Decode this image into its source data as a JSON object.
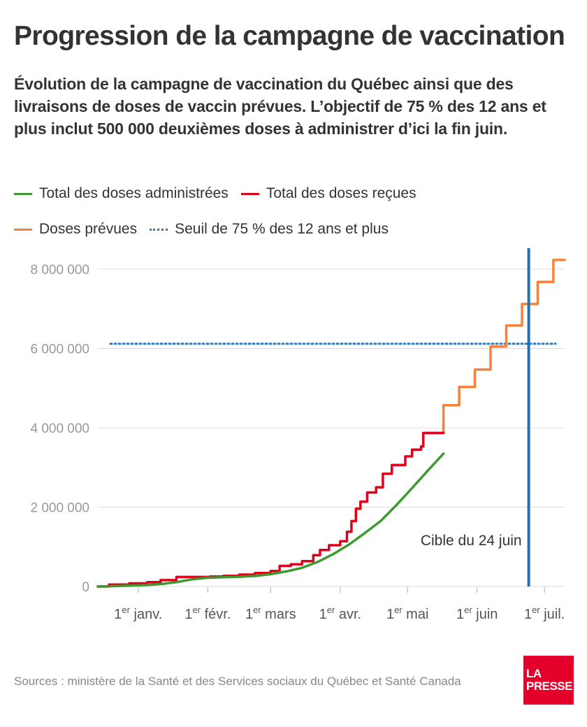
{
  "header": {
    "title": "Progression de la campagne de vaccination",
    "subtitle": "Évolution de la campagne de vaccination du Québec ainsi que des livraisons de doses de vaccin prévues. L’objectif de 75 % des 12 ans et plus inclut 500 000 deuxièmes doses à administrer d’ici la fin juin."
  },
  "legend": {
    "administered": "Total des doses administrées",
    "received": "Total des doses reçues",
    "planned": "Doses prévues",
    "threshold": "Seuil de 75 % des 12 ans et plus"
  },
  "colors": {
    "administered": "#3d9a2f",
    "received": "#e0001b",
    "planned": "#f5823c",
    "threshold": "#2b7bbd",
    "target": "#1f72b8",
    "grid": "#dddddd",
    "axis_text": "#999999"
  },
  "footer": {
    "source": "Sources : ministère de la Santé et des Services sociaux du Québec et Santé Canada",
    "logo_line1": "LA",
    "logo_line2": "PRESSE"
  },
  "chart_data": {
    "type": "line",
    "x_unit": "date",
    "xlim": [
      "2020-12-14",
      "2021-07-10"
    ],
    "ylim": [
      0,
      8000000
    ],
    "y_ticks": [
      {
        "value": 0,
        "label": "0"
      },
      {
        "value": 2000000,
        "label": "2 000 000"
      },
      {
        "value": 4000000,
        "label": "4 000 000"
      },
      {
        "value": 6000000,
        "label": "6 000 000"
      },
      {
        "value": 8000000,
        "label": "8 000 000"
      }
    ],
    "x_ticks": [
      {
        "date": "2021-01-01",
        "sup": "er",
        "label": " janv."
      },
      {
        "date": "2021-02-01",
        "sup": "er",
        "label": " févr."
      },
      {
        "date": "2021-03-01",
        "sup": "er",
        "label": " mars"
      },
      {
        "date": "2021-04-01",
        "sup": "er",
        "label": " avr."
      },
      {
        "date": "2021-05-01",
        "sup": "er",
        "label": " mai"
      },
      {
        "date": "2021-06-01",
        "sup": "er",
        "label": " juin"
      },
      {
        "date": "2021-07-01",
        "sup": "er",
        "label": " juil."
      }
    ],
    "x_tick_prefix": "1",
    "threshold": {
      "value": 6120000,
      "name": "Seuil de 75 % des 12 ans et plus"
    },
    "target_line": {
      "date": "2021-06-24",
      "label": "Cible du 24 juin"
    },
    "series": [
      {
        "name": "Total des doses administrées",
        "style": "line",
        "points": [
          [
            "2020-12-14",
            0
          ],
          [
            "2020-12-21",
            8000
          ],
          [
            "2020-12-28",
            20000
          ],
          [
            "2021-01-04",
            35000
          ],
          [
            "2021-01-11",
            60000
          ],
          [
            "2021-01-18",
            110000
          ],
          [
            "2021-01-25",
            180000
          ],
          [
            "2021-02-01",
            220000
          ],
          [
            "2021-02-08",
            235000
          ],
          [
            "2021-02-15",
            245000
          ],
          [
            "2021-02-22",
            265000
          ],
          [
            "2021-03-01",
            310000
          ],
          [
            "2021-03-08",
            380000
          ],
          [
            "2021-03-15",
            470000
          ],
          [
            "2021-03-22",
            620000
          ],
          [
            "2021-03-29",
            820000
          ],
          [
            "2021-04-05",
            1060000
          ],
          [
            "2021-04-12",
            1350000
          ],
          [
            "2021-04-19",
            1650000
          ],
          [
            "2021-04-26",
            2050000
          ],
          [
            "2021-05-03",
            2480000
          ],
          [
            "2021-05-10",
            2920000
          ],
          [
            "2021-05-17",
            3350000
          ]
        ]
      },
      {
        "name": "Total des doses reçues",
        "style": "step",
        "points": [
          [
            "2020-12-14",
            0
          ],
          [
            "2020-12-19",
            50000
          ],
          [
            "2020-12-28",
            80000
          ],
          [
            "2021-01-05",
            110000
          ],
          [
            "2021-01-11",
            160000
          ],
          [
            "2021-01-18",
            240000
          ],
          [
            "2021-02-02",
            250000
          ],
          [
            "2021-02-08",
            270000
          ],
          [
            "2021-02-15",
            300000
          ],
          [
            "2021-02-22",
            340000
          ],
          [
            "2021-03-01",
            390000
          ],
          [
            "2021-03-05",
            520000
          ],
          [
            "2021-03-10",
            560000
          ],
          [
            "2021-03-15",
            640000
          ],
          [
            "2021-03-20",
            790000
          ],
          [
            "2021-03-23",
            920000
          ],
          [
            "2021-03-27",
            1040000
          ],
          [
            "2021-04-01",
            1140000
          ],
          [
            "2021-04-04",
            1380000
          ],
          [
            "2021-04-06",
            1650000
          ],
          [
            "2021-04-08",
            1960000
          ],
          [
            "2021-04-10",
            2140000
          ],
          [
            "2021-04-13",
            2370000
          ],
          [
            "2021-04-17",
            2500000
          ],
          [
            "2021-04-20",
            2840000
          ],
          [
            "2021-04-24",
            3060000
          ],
          [
            "2021-04-30",
            3280000
          ],
          [
            "2021-05-03",
            3450000
          ],
          [
            "2021-05-07",
            3530000
          ],
          [
            "2021-05-08",
            3870000
          ],
          [
            "2021-05-17",
            3870000
          ]
        ]
      },
      {
        "name": "Doses prévues",
        "style": "step",
        "points": [
          [
            "2021-05-10",
            3870000
          ],
          [
            "2021-05-17",
            4570000
          ],
          [
            "2021-05-24",
            5030000
          ],
          [
            "2021-05-31",
            5470000
          ],
          [
            "2021-06-07",
            6050000
          ],
          [
            "2021-06-14",
            6580000
          ],
          [
            "2021-06-21",
            7120000
          ],
          [
            "2021-06-28",
            7680000
          ],
          [
            "2021-07-05",
            8230000
          ],
          [
            "2021-07-10",
            8230000
          ]
        ]
      }
    ]
  }
}
